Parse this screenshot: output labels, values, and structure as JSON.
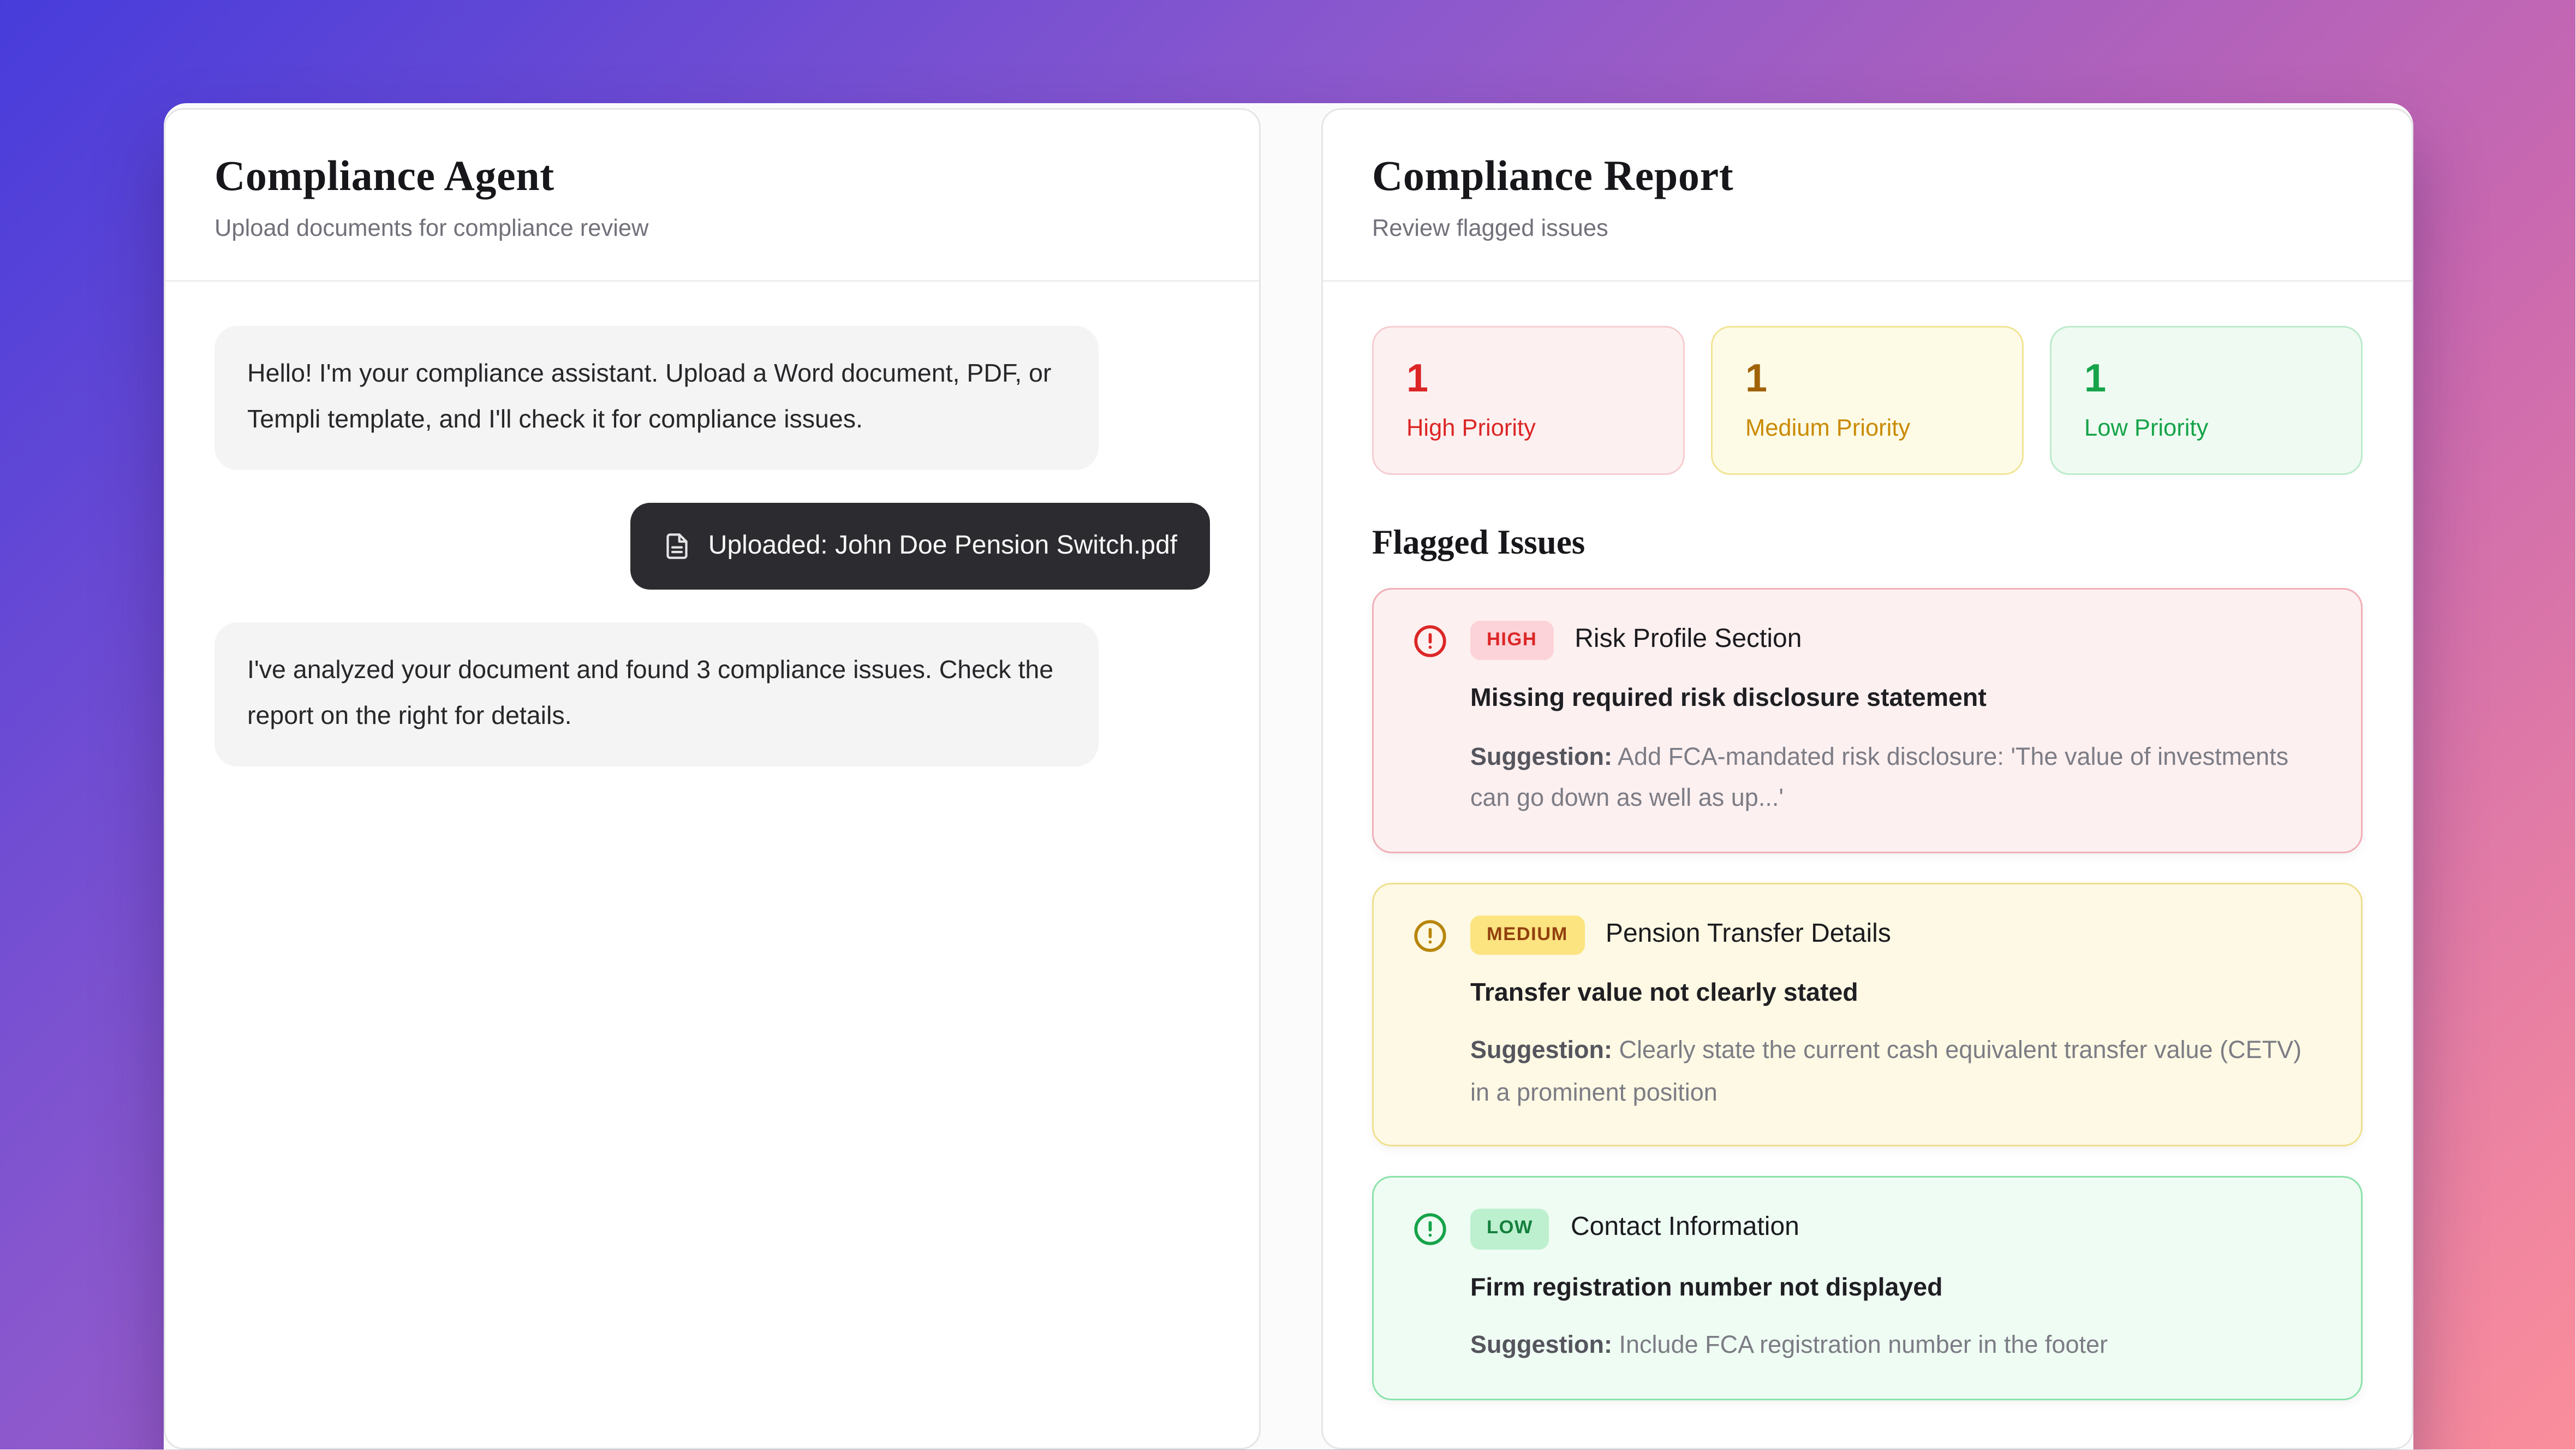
{
  "page": {
    "background_gradient": {
      "from": "#473cdb",
      "mid": "#c968b0",
      "to": "#fb8e9b"
    }
  },
  "chat_panel": {
    "title": "Compliance Agent",
    "subtitle": "Upload documents for compliance review",
    "messages": [
      {
        "role": "assistant",
        "text": "Hello! I'm your compliance assistant. Upload a Word document, PDF, or Templi template, and I'll check it for compliance issues."
      },
      {
        "role": "user",
        "type": "upload",
        "icon": "file-text-icon",
        "text": "Uploaded: John Doe Pension Switch.pdf"
      },
      {
        "role": "assistant",
        "text": "I've analyzed your document and found 3 compliance issues. Check the report on the right for details."
      }
    ]
  },
  "report_panel": {
    "title": "Compliance Report",
    "subtitle": "Review flagged issues",
    "stats": [
      {
        "severity": "high",
        "count": "1",
        "label": "High Priority",
        "accent": "#dc2626",
        "bg": "#fdf0f1"
      },
      {
        "severity": "medium",
        "count": "1",
        "label": "Medium Priority",
        "accent": "#a16207",
        "bg": "#fdfbe6"
      },
      {
        "severity": "low",
        "count": "1",
        "label": "Low Priority",
        "accent": "#16a34a",
        "bg": "#effbf2"
      }
    ],
    "issues_heading": "Flagged Issues",
    "issues": [
      {
        "severity": "high",
        "badge": "HIGH",
        "icon": "alert-circle-icon",
        "section": "Risk Profile Section",
        "statement": "Missing required risk disclosure statement",
        "suggestion_label": "Suggestion:",
        "suggestion": "Add FCA-mandated risk disclosure: 'The value of investments can go down as well as up...'"
      },
      {
        "severity": "medium",
        "badge": "MEDIUM",
        "icon": "alert-circle-icon",
        "section": "Pension Transfer Details",
        "statement": "Transfer value not clearly stated",
        "suggestion_label": "Suggestion:",
        "suggestion": "Clearly state the current cash equivalent transfer value (CETV) in a prominent position"
      },
      {
        "severity": "low",
        "badge": "LOW",
        "icon": "alert-circle-icon",
        "section": "Contact Information",
        "statement": "Firm registration number not displayed",
        "suggestion_label": "Suggestion:",
        "suggestion": "Include FCA registration number in the footer"
      }
    ]
  }
}
